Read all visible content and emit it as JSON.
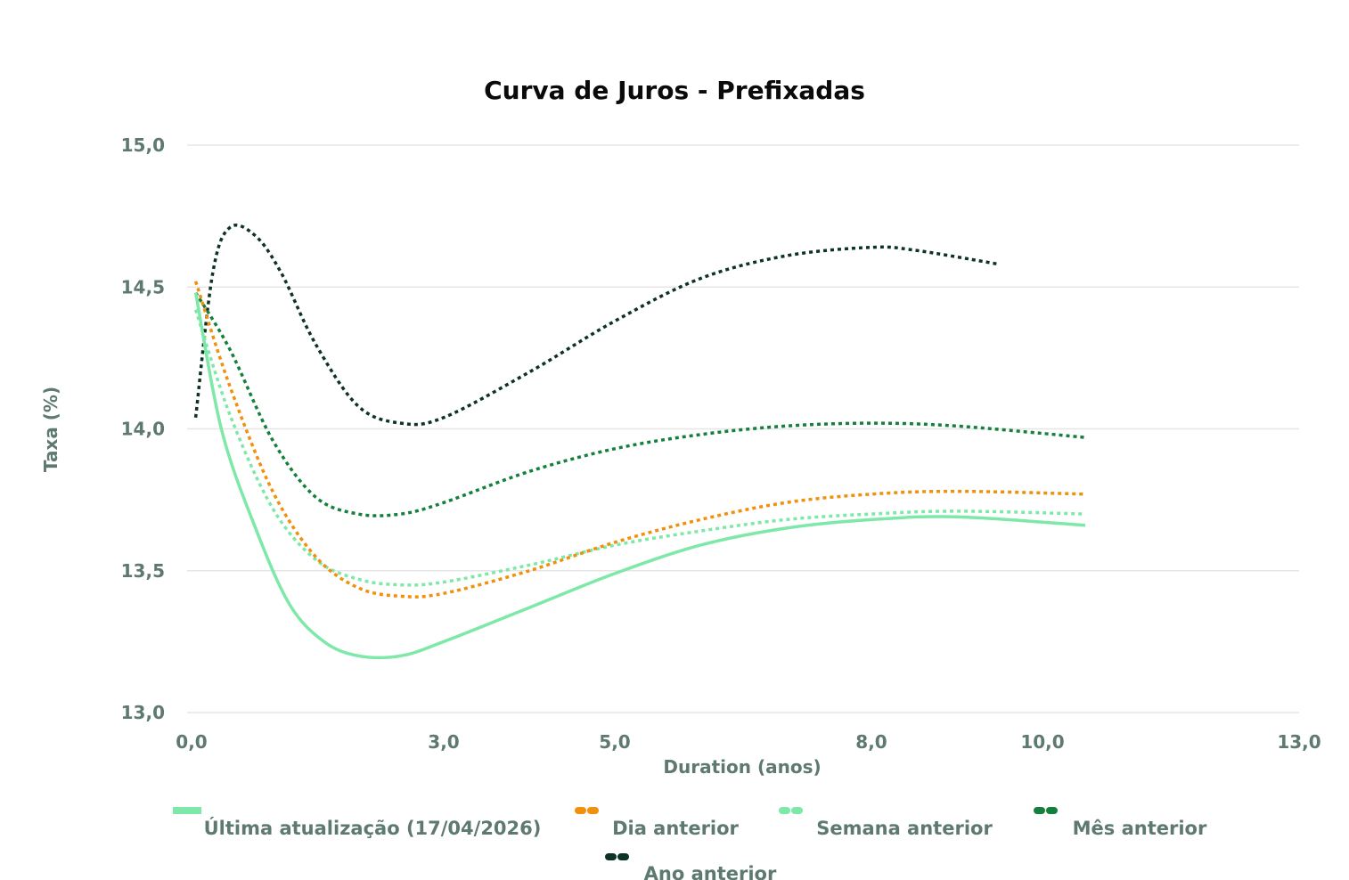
{
  "chart_data": {
    "type": "line",
    "title": "Curva de Juros - Prefixadas",
    "xlabel": "Duration (anos)",
    "ylabel": "Taxa (%)",
    "xlim": [
      0,
      13
    ],
    "ylim": [
      13.0,
      15.0
    ],
    "x_ticks": [
      {
        "value": 0.0,
        "label": "0,0"
      },
      {
        "value": 3.0,
        "label": "3,0"
      },
      {
        "value": 5.0,
        "label": "5,0"
      },
      {
        "value": 8.0,
        "label": "8,0"
      },
      {
        "value": 10.0,
        "label": "10,0"
      },
      {
        "value": 13.0,
        "label": "13,0"
      }
    ],
    "y_ticks": [
      {
        "value": 13.0,
        "label": "13,0"
      },
      {
        "value": 13.5,
        "label": "13,5"
      },
      {
        "value": 14.0,
        "label": "14,0"
      },
      {
        "value": 14.5,
        "label": "14,5"
      },
      {
        "value": 15.0,
        "label": "15,0"
      }
    ],
    "grid": true,
    "legend_position": "bottom",
    "series": [
      {
        "name": "Última atualização (17/04/2026)",
        "color": "#7ee8a9",
        "style": "solid",
        "x": [
          0.1,
          0.4,
          0.8,
          1.2,
          1.6,
          2.0,
          2.5,
          3.0,
          4.0,
          5.0,
          6.0,
          7.0,
          8.0,
          9.0,
          10.5
        ],
        "y": [
          14.48,
          14.0,
          13.65,
          13.38,
          13.25,
          13.2,
          13.2,
          13.25,
          13.37,
          13.49,
          13.59,
          13.65,
          13.68,
          13.69,
          13.66
        ]
      },
      {
        "name": "Dia anterior",
        "color": "#f0900c",
        "style": "dotted",
        "x": [
          0.1,
          0.5,
          1.0,
          1.5,
          2.0,
          2.5,
          3.0,
          4.0,
          5.0,
          6.0,
          7.0,
          8.0,
          9.0,
          10.5
        ],
        "y": [
          14.52,
          14.15,
          13.78,
          13.55,
          13.44,
          13.41,
          13.42,
          13.5,
          13.6,
          13.68,
          13.74,
          13.77,
          13.78,
          13.77
        ]
      },
      {
        "name": "Semana anterior",
        "color": "#7ee8a9",
        "style": "dotted",
        "x": [
          0.1,
          0.5,
          1.0,
          1.5,
          2.0,
          2.5,
          3.0,
          4.0,
          5.0,
          6.0,
          7.0,
          8.0,
          9.0,
          10.5
        ],
        "y": [
          14.42,
          14.05,
          13.72,
          13.54,
          13.47,
          13.45,
          13.46,
          13.52,
          13.59,
          13.64,
          13.68,
          13.7,
          13.71,
          13.7
        ]
      },
      {
        "name": "Mês anterior",
        "color": "#15803d",
        "style": "dotted",
        "x": [
          0.1,
          0.5,
          1.0,
          1.5,
          2.0,
          2.5,
          3.0,
          4.0,
          5.0,
          6.0,
          7.0,
          8.0,
          9.0,
          10.5
        ],
        "y": [
          14.48,
          14.28,
          13.96,
          13.76,
          13.7,
          13.7,
          13.74,
          13.85,
          13.93,
          13.98,
          14.01,
          14.02,
          14.01,
          13.97
        ]
      },
      {
        "name": "Ano anterior",
        "color": "#0d3324",
        "style": "dotted",
        "x": [
          0.1,
          0.3,
          0.5,
          0.8,
          1.1,
          1.5,
          2.0,
          2.5,
          3.0,
          4.0,
          5.0,
          6.0,
          7.0,
          8.0,
          8.5,
          9.5
        ],
        "y": [
          14.04,
          14.55,
          14.71,
          14.68,
          14.55,
          14.3,
          14.08,
          14.02,
          14.04,
          14.2,
          14.38,
          14.53,
          14.61,
          14.64,
          14.63,
          14.58
        ]
      }
    ]
  }
}
